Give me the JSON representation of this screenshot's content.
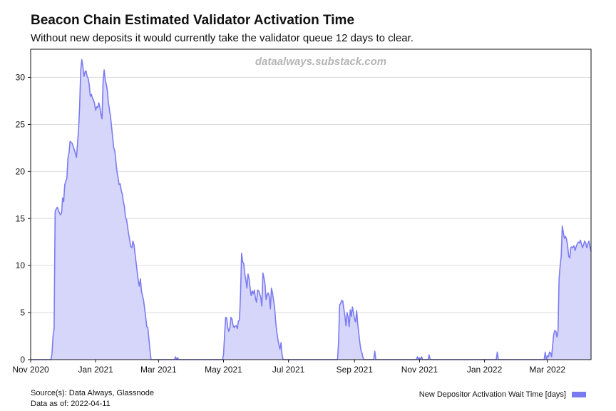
{
  "header": {
    "title": "Beacon Chain Estimated Validator Activation Time",
    "subtitle": "Without new deposits it would currently take the validator queue 12 days to clear."
  },
  "watermark": "dataalways.substack.com",
  "footer": {
    "sources": "Source(s): Data Always, Glassnode",
    "data_as_of": "Data as of: 2022-04-11"
  },
  "colors": {
    "line": "#7b7bf0",
    "fill": "#d6d6fb",
    "grid": "#dcdcdc",
    "axis": "#111111",
    "watermark": "#b5b5b5"
  },
  "chart_data": {
    "type": "area",
    "title": "Beacon Chain Estimated Validator Activation Time",
    "subtitle": "Without new deposits it would currently take the validator queue 12 days to clear.",
    "xlabel": "",
    "ylabel": "",
    "xlim": [
      "2020-11-01",
      "2022-04-11"
    ],
    "ylim": [
      0,
      33
    ],
    "x_tick_labels": [
      "Nov 2020",
      "Jan 2021",
      "Mar 2021",
      "May 2021",
      "Jul 2021",
      "Sep 2021",
      "Nov 2021",
      "Jan 2022",
      "Mar 2022"
    ],
    "x_tick_dates": [
      "2020-11-01",
      "2021-01-01",
      "2021-03-01",
      "2021-05-01",
      "2021-07-01",
      "2021-09-01",
      "2021-11-01",
      "2022-01-01",
      "2022-03-01"
    ],
    "y_ticks": [
      0,
      5,
      10,
      15,
      20,
      25,
      30
    ],
    "grid": true,
    "legend_position": "bottom-right",
    "series": [
      {
        "name": "New Depositor Activation Wait Time [days]",
        "points": [
          [
            "2020-11-01",
            0
          ],
          [
            "2020-11-20",
            0
          ],
          [
            "2020-11-21",
            0.6
          ],
          [
            "2020-11-22",
            2.5
          ],
          [
            "2020-11-23",
            3.3
          ],
          [
            "2020-11-24",
            15.8
          ],
          [
            "2020-11-26",
            16.2
          ],
          [
            "2020-11-28",
            15.6
          ],
          [
            "2020-11-29",
            15.4
          ],
          [
            "2020-11-30",
            15.6
          ],
          [
            "2020-12-01",
            17.2
          ],
          [
            "2020-12-02",
            16.8
          ],
          [
            "2020-12-03",
            18.6
          ],
          [
            "2020-12-05",
            19.3
          ],
          [
            "2020-12-06",
            21.4
          ],
          [
            "2020-12-07",
            22.0
          ],
          [
            "2020-12-08",
            23.2
          ],
          [
            "2020-12-10",
            23.0
          ],
          [
            "2020-12-12",
            22.3
          ],
          [
            "2020-12-14",
            21.5
          ],
          [
            "2020-12-16",
            24.5
          ],
          [
            "2020-12-17",
            27.0
          ],
          [
            "2020-12-18",
            30.8
          ],
          [
            "2020-12-19",
            31.9
          ],
          [
            "2020-12-20",
            31.2
          ],
          [
            "2020-12-21",
            30.1
          ],
          [
            "2020-12-22",
            30.6
          ],
          [
            "2020-12-23",
            30.7
          ],
          [
            "2020-12-24",
            30.1
          ],
          [
            "2020-12-25",
            29.9
          ],
          [
            "2020-12-26",
            29.2
          ],
          [
            "2020-12-27",
            28.0
          ],
          [
            "2020-12-28",
            28.2
          ],
          [
            "2020-12-29",
            27.8
          ],
          [
            "2020-12-30",
            27.6
          ],
          [
            "2020-12-31",
            27.2
          ],
          [
            "2021-01-01",
            26.5
          ],
          [
            "2021-01-02",
            26.9
          ],
          [
            "2021-01-03",
            26.8
          ],
          [
            "2021-01-04",
            27.3
          ],
          [
            "2021-01-05",
            26.8
          ],
          [
            "2021-01-06",
            26.1
          ],
          [
            "2021-01-07",
            25.6
          ],
          [
            "2021-01-08",
            29.6
          ],
          [
            "2021-01-09",
            30.8
          ],
          [
            "2021-01-10",
            29.7
          ],
          [
            "2021-01-11",
            29.3
          ],
          [
            "2021-01-12",
            28.6
          ],
          [
            "2021-01-13",
            27.3
          ],
          [
            "2021-01-15",
            25.8
          ],
          [
            "2021-01-17",
            23.6
          ],
          [
            "2021-01-18",
            22.5
          ],
          [
            "2021-01-19",
            22.2
          ],
          [
            "2021-01-21",
            20.0
          ],
          [
            "2021-01-22",
            19.4
          ],
          [
            "2021-01-23",
            18.6
          ],
          [
            "2021-01-24",
            18.7
          ],
          [
            "2021-01-25",
            18.0
          ],
          [
            "2021-01-26",
            17.6
          ],
          [
            "2021-01-27",
            16.8
          ],
          [
            "2021-01-28",
            16.3
          ],
          [
            "2021-01-29",
            15.1
          ],
          [
            "2021-01-30",
            14.9
          ],
          [
            "2021-02-01",
            13.3
          ],
          [
            "2021-02-02",
            12.7
          ],
          [
            "2021-02-03",
            12.0
          ],
          [
            "2021-02-04",
            11.9
          ],
          [
            "2021-02-05",
            12.6
          ],
          [
            "2021-02-06",
            12.2
          ],
          [
            "2021-02-08",
            10.3
          ],
          [
            "2021-02-10",
            8.4
          ],
          [
            "2021-02-11",
            7.8
          ],
          [
            "2021-02-12",
            8.6
          ],
          [
            "2021-02-13",
            7.3
          ],
          [
            "2021-02-15",
            6.3
          ],
          [
            "2021-02-17",
            4.5
          ],
          [
            "2021-02-18",
            3.5
          ],
          [
            "2021-02-19",
            3.4
          ],
          [
            "2021-02-21",
            1.0
          ],
          [
            "2021-02-22",
            0
          ],
          [
            "2021-03-16",
            0
          ],
          [
            "2021-03-17",
            0.3
          ],
          [
            "2021-03-18",
            0
          ],
          [
            "2021-03-19",
            0.2
          ],
          [
            "2021-03-20",
            0
          ],
          [
            "2021-04-30",
            0
          ],
          [
            "2021-05-01",
            0.5
          ],
          [
            "2021-05-02",
            2.5
          ],
          [
            "2021-05-03",
            4.5
          ],
          [
            "2021-05-04",
            4.4
          ],
          [
            "2021-05-05",
            3.4
          ],
          [
            "2021-05-06",
            3.0
          ],
          [
            "2021-05-07",
            3.4
          ],
          [
            "2021-05-08",
            4.5
          ],
          [
            "2021-05-09",
            4.3
          ],
          [
            "2021-05-10",
            3.6
          ],
          [
            "2021-05-11",
            3.4
          ],
          [
            "2021-05-12",
            3.6
          ],
          [
            "2021-05-13",
            3.6
          ],
          [
            "2021-05-14",
            3.3
          ],
          [
            "2021-05-15",
            4.1
          ],
          [
            "2021-05-16",
            4.2
          ],
          [
            "2021-05-17",
            7.0
          ],
          [
            "2021-05-18",
            11.3
          ],
          [
            "2021-05-19",
            10.4
          ],
          [
            "2021-05-20",
            10.2
          ],
          [
            "2021-05-21",
            9.1
          ],
          [
            "2021-05-22",
            8.5
          ],
          [
            "2021-05-23",
            7.6
          ],
          [
            "2021-05-24",
            9.1
          ],
          [
            "2021-05-25",
            8.6
          ],
          [
            "2021-05-26",
            7.6
          ],
          [
            "2021-05-27",
            6.8
          ],
          [
            "2021-05-28",
            7.3
          ],
          [
            "2021-05-29",
            7.0
          ],
          [
            "2021-05-30",
            7.4
          ],
          [
            "2021-05-31",
            6.5
          ],
          [
            "2021-06-01",
            6.1
          ],
          [
            "2021-06-02",
            7.4
          ],
          [
            "2021-06-03",
            7.3
          ],
          [
            "2021-06-04",
            7.0
          ],
          [
            "2021-06-05",
            6.6
          ],
          [
            "2021-06-06",
            5.7
          ],
          [
            "2021-06-07",
            9.2
          ],
          [
            "2021-06-08",
            8.7
          ],
          [
            "2021-06-09",
            8.0
          ],
          [
            "2021-06-10",
            6.4
          ],
          [
            "2021-06-11",
            6.9
          ],
          [
            "2021-06-12",
            7.1
          ],
          [
            "2021-06-13",
            6.7
          ],
          [
            "2021-06-14",
            5.4
          ],
          [
            "2021-06-15",
            7.6
          ],
          [
            "2021-06-16",
            7.1
          ],
          [
            "2021-06-17",
            6.3
          ],
          [
            "2021-06-18",
            5.5
          ],
          [
            "2021-06-19",
            4.0
          ],
          [
            "2021-06-20",
            3.0
          ],
          [
            "2021-06-21",
            2.2
          ],
          [
            "2021-06-22",
            1.6
          ],
          [
            "2021-06-23",
            1.1
          ],
          [
            "2021-06-24",
            1.8
          ],
          [
            "2021-06-25",
            0.5
          ],
          [
            "2021-06-26",
            0
          ],
          [
            "2021-08-16",
            0
          ],
          [
            "2021-08-17",
            1.8
          ],
          [
            "2021-08-18",
            5.8
          ],
          [
            "2021-08-19",
            6.0
          ],
          [
            "2021-08-20",
            6.3
          ],
          [
            "2021-08-21",
            6.2
          ],
          [
            "2021-08-22",
            5.4
          ],
          [
            "2021-08-23",
            4.6
          ],
          [
            "2021-08-24",
            3.6
          ],
          [
            "2021-08-25",
            5.0
          ],
          [
            "2021-08-26",
            4.5
          ],
          [
            "2021-08-27",
            3.5
          ],
          [
            "2021-08-28",
            5.3
          ],
          [
            "2021-08-29",
            4.6
          ],
          [
            "2021-08-30",
            5.6
          ],
          [
            "2021-08-31",
            5.0
          ],
          [
            "2021-09-01",
            4.3
          ],
          [
            "2021-09-02",
            4.0
          ],
          [
            "2021-09-03",
            5.2
          ],
          [
            "2021-09-04",
            3.8
          ],
          [
            "2021-09-05",
            2.8
          ],
          [
            "2021-09-06",
            1.8
          ],
          [
            "2021-09-07",
            1.0
          ],
          [
            "2021-09-08",
            0.7
          ],
          [
            "2021-09-09",
            0.2
          ],
          [
            "2021-09-10",
            0
          ],
          [
            "2021-09-19",
            0
          ],
          [
            "2021-09-20",
            0.9
          ],
          [
            "2021-09-21",
            0
          ],
          [
            "2021-10-29",
            0
          ],
          [
            "2021-10-30",
            0.3
          ],
          [
            "2021-10-31",
            0
          ],
          [
            "2021-11-01",
            0.2
          ],
          [
            "2021-11-02",
            0
          ],
          [
            "2021-11-03",
            0.3
          ],
          [
            "2021-11-04",
            0
          ],
          [
            "2021-11-09",
            0
          ],
          [
            "2021-11-10",
            0.5
          ],
          [
            "2021-11-11",
            0
          ],
          [
            "2022-01-12",
            0
          ],
          [
            "2022-01-13",
            0.8
          ],
          [
            "2022-01-14",
            0
          ],
          [
            "2022-02-26",
            0
          ],
          [
            "2022-02-27",
            0.8
          ],
          [
            "2022-02-28",
            0
          ],
          [
            "2022-03-01",
            0.4
          ],
          [
            "2022-03-02",
            0.3
          ],
          [
            "2022-03-03",
            0.8
          ],
          [
            "2022-03-04",
            0.7
          ],
          [
            "2022-03-05",
            0.3
          ],
          [
            "2022-03-06",
            1.6
          ],
          [
            "2022-03-07",
            2.7
          ],
          [
            "2022-03-08",
            3.1
          ],
          [
            "2022-03-09",
            3.0
          ],
          [
            "2022-03-10",
            2.4
          ],
          [
            "2022-03-11",
            3.0
          ],
          [
            "2022-03-12",
            8.6
          ],
          [
            "2022-03-13",
            10.0
          ],
          [
            "2022-03-14",
            11.0
          ],
          [
            "2022-03-15",
            14.2
          ],
          [
            "2022-03-16",
            13.5
          ],
          [
            "2022-03-17",
            12.9
          ],
          [
            "2022-03-18",
            13.1
          ],
          [
            "2022-03-19",
            12.8
          ],
          [
            "2022-03-20",
            12.1
          ],
          [
            "2022-03-21",
            11.0
          ],
          [
            "2022-03-22",
            10.8
          ],
          [
            "2022-03-23",
            11.9
          ],
          [
            "2022-03-24",
            12.0
          ],
          [
            "2022-03-25",
            11.9
          ],
          [
            "2022-03-26",
            12.1
          ],
          [
            "2022-03-27",
            11.6
          ],
          [
            "2022-03-28",
            12.0
          ],
          [
            "2022-03-29",
            12.3
          ],
          [
            "2022-03-30",
            12.5
          ],
          [
            "2022-03-31",
            12.4
          ],
          [
            "2022-04-01",
            12.7
          ],
          [
            "2022-04-02",
            12.3
          ],
          [
            "2022-04-03",
            11.9
          ],
          [
            "2022-04-04",
            12.2
          ],
          [
            "2022-04-05",
            12.6
          ],
          [
            "2022-04-06",
            12.4
          ],
          [
            "2022-04-07",
            11.9
          ],
          [
            "2022-04-08",
            12.3
          ],
          [
            "2022-04-09",
            12.6
          ],
          [
            "2022-04-10",
            12.0
          ],
          [
            "2022-04-11",
            11.5
          ]
        ]
      }
    ]
  }
}
